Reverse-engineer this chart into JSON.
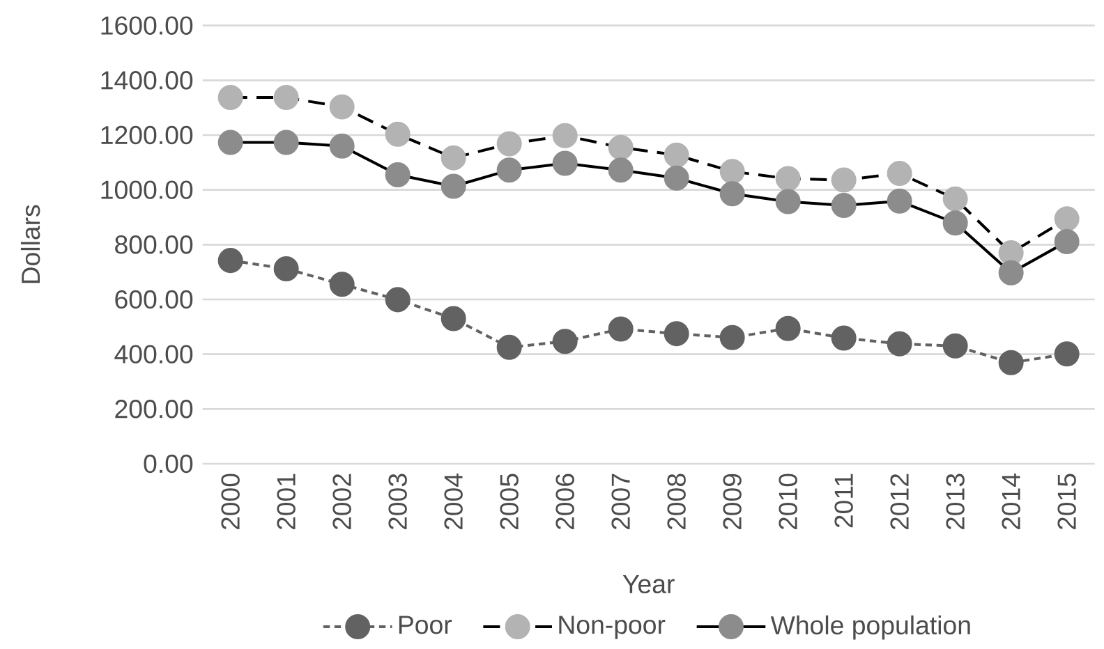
{
  "chart_data": {
    "type": "line",
    "xlabel": "Year",
    "ylabel": "Dollars",
    "categories": [
      "2000",
      "2001",
      "2002",
      "2003",
      "2004",
      "2005",
      "2006",
      "2007",
      "2008",
      "2009",
      "2010",
      "2011",
      "2012",
      "2013",
      "2014",
      "2015"
    ],
    "series": [
      {
        "name": "Poor",
        "color": "#626262",
        "line_style": "dotted",
        "values": [
          742,
          712,
          655,
          599,
          530,
          425,
          447,
          492,
          475,
          461,
          494,
          459,
          438,
          430,
          369,
          401
        ]
      },
      {
        "name": "Non-poor",
        "color": "#b3b3b3",
        "line_style": "dashed",
        "values": [
          1337,
          1337,
          1303,
          1203,
          1117,
          1168,
          1198,
          1155,
          1127,
          1067,
          1041,
          1036,
          1060,
          967,
          770,
          894
        ]
      },
      {
        "name": "Whole population",
        "color": "#8c8c8c",
        "line_style": "solid",
        "values": [
          1173,
          1173,
          1160,
          1055,
          1013,
          1072,
          1097,
          1072,
          1043,
          986,
          957,
          943,
          959,
          879,
          697,
          811
        ]
      }
    ],
    "ylim": [
      0,
      1600
    ],
    "yticks": [
      {
        "value": 0,
        "label": "0.00"
      },
      {
        "value": 200,
        "label": "200.00"
      },
      {
        "value": 400,
        "label": "400.00"
      },
      {
        "value": 600,
        "label": "600.00"
      },
      {
        "value": 800,
        "label": "800.00"
      },
      {
        "value": 1000,
        "label": "1000.00"
      },
      {
        "value": 1200,
        "label": "1200.00"
      },
      {
        "value": 1400,
        "label": "1400.00"
      },
      {
        "value": 1600,
        "label": "1600.00"
      }
    ],
    "grid": "y",
    "legend": "bottom",
    "marker": "circle"
  }
}
